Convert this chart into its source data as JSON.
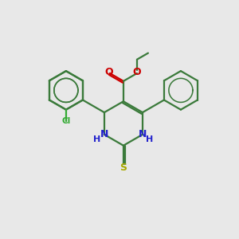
{
  "background_color": "#e8e8e8",
  "bond_color": "#3a7a3a",
  "bond_width": 1.6,
  "atom_colors": {
    "N": "#2222cc",
    "O": "#cc0000",
    "S": "#aaaa00",
    "Cl": "#33aa33"
  }
}
